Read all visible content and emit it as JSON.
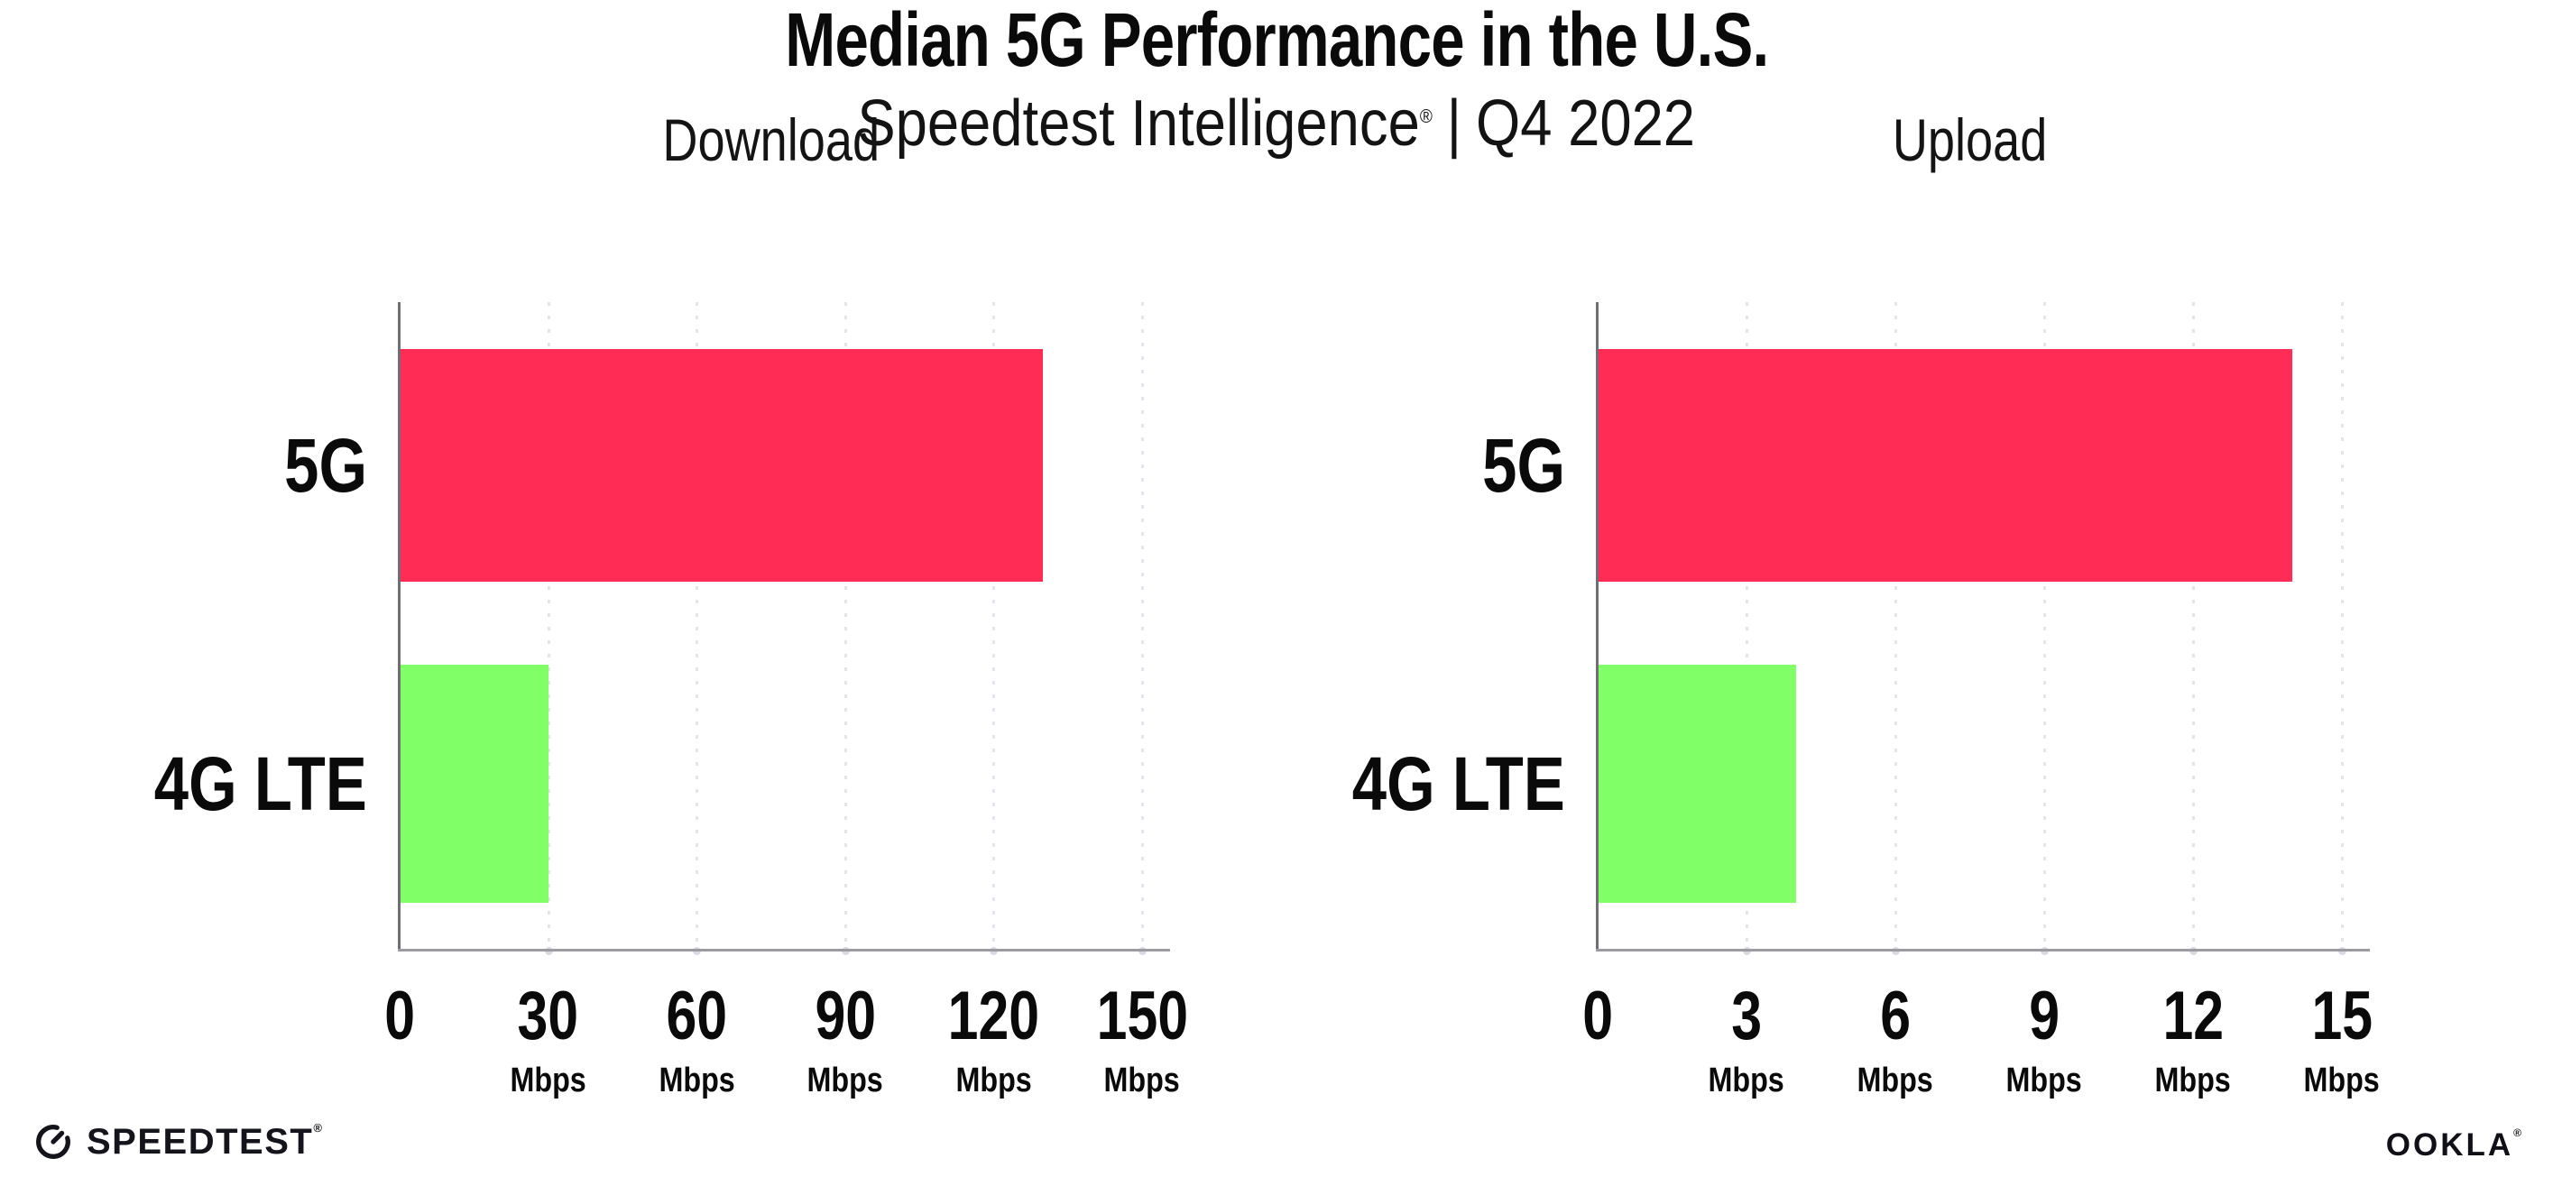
{
  "header": {
    "title": "Median 5G Performance in the U.S.",
    "subtitle_brand": "Speedtest Intelligence",
    "subtitle_reg": "®",
    "subtitle_separator": "|",
    "subtitle_period": "Q4 2022"
  },
  "chart_data": [
    {
      "type": "bar",
      "orientation": "horizontal",
      "title": "Download",
      "categories": [
        "5G",
        "4G LTE"
      ],
      "values": [
        130,
        30
      ],
      "unit": "Mbps",
      "xlim": [
        0,
        150
      ],
      "xticks": [
        0,
        30,
        60,
        90,
        120,
        150
      ],
      "tick_labels": [
        {
          "num": "0",
          "unit": ""
        },
        {
          "num": "30",
          "unit": "Mbps"
        },
        {
          "num": "60",
          "unit": "Mbps"
        },
        {
          "num": "90",
          "unit": "Mbps"
        },
        {
          "num": "120",
          "unit": "Mbps"
        },
        {
          "num": "150",
          "unit": "Mbps"
        }
      ],
      "colors": [
        "#ff2d55",
        "#80ff66"
      ],
      "grid": "vertical-dotted",
      "legend": "none"
    },
    {
      "type": "bar",
      "orientation": "horizontal",
      "title": "Upload",
      "categories": [
        "5G",
        "4G LTE"
      ],
      "values": [
        14,
        4
      ],
      "unit": "Mbps",
      "xlim": [
        0,
        15
      ],
      "xticks": [
        0,
        3,
        6,
        9,
        12,
        15
      ],
      "tick_labels": [
        {
          "num": "0",
          "unit": ""
        },
        {
          "num": "3",
          "unit": "Mbps"
        },
        {
          "num": "6",
          "unit": "Mbps"
        },
        {
          "num": "9",
          "unit": "Mbps"
        },
        {
          "num": "12",
          "unit": "Mbps"
        },
        {
          "num": "15",
          "unit": "Mbps"
        }
      ],
      "colors": [
        "#ff2d55",
        "#80ff66"
      ],
      "grid": "vertical-dotted",
      "legend": "none"
    }
  ],
  "footer": {
    "speedtest_label": "SPEEDTEST",
    "speedtest_reg": "®",
    "ookla_label": "OOKLA",
    "ookla_reg": "®"
  },
  "colors": {
    "background": "#ffffff",
    "text": "#0a0a0a",
    "bar_5g": "#ff2d55",
    "bar_4g_lte": "#80ff66",
    "x_axis_line": "#9b9ba1",
    "y_axis_line": "#6e6e74",
    "gridline_dots": "#e4e4ee",
    "logo": "#14141c"
  }
}
